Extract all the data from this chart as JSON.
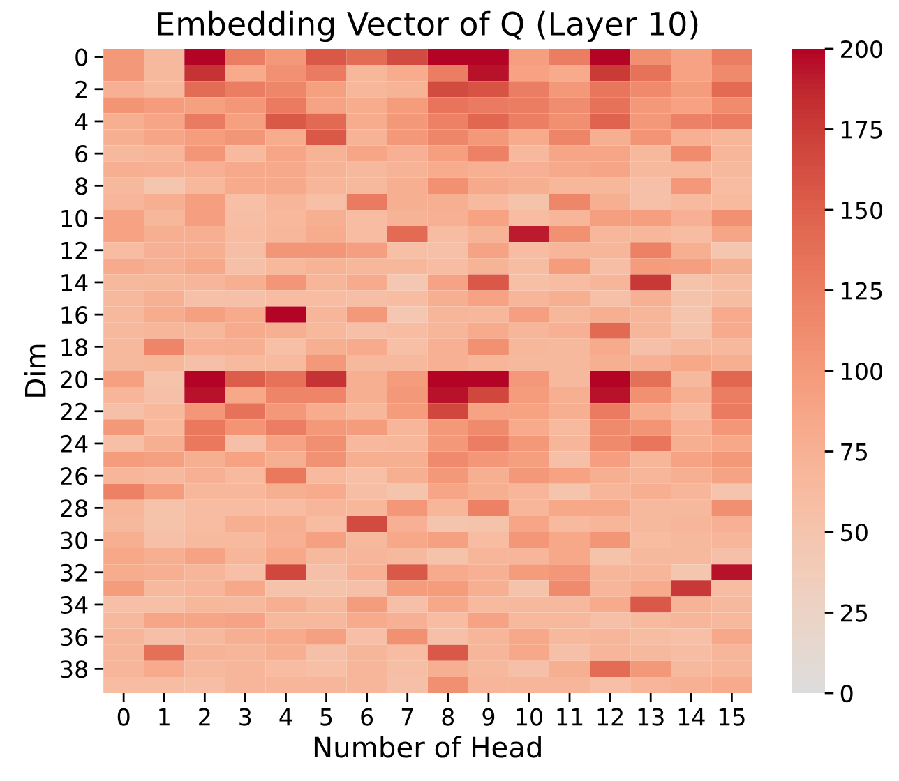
{
  "chart_data": {
    "type": "heatmap",
    "title": "Embedding Vector of Q (Layer 10)",
    "xlabel": "Number of Head",
    "ylabel": "Dim",
    "categories": [
      "0",
      "1",
      "2",
      "3",
      "4",
      "5",
      "6",
      "7",
      "8",
      "9",
      "10",
      "11",
      "12",
      "13",
      "14",
      "15"
    ],
    "y_categories": [
      "0",
      null,
      "2",
      null,
      "4",
      null,
      "6",
      null,
      "8",
      null,
      "10",
      null,
      "12",
      null,
      "14",
      null,
      "16",
      null,
      "18",
      null,
      "20",
      null,
      "22",
      null,
      "24",
      null,
      "26",
      null,
      "28",
      null,
      "30",
      null,
      "32",
      null,
      "34",
      null,
      "36",
      null,
      "38",
      null
    ],
    "cells": [
      [
        100,
        65,
        200,
        125,
        100,
        155,
        140,
        165,
        200,
        200,
        95,
        125,
        200,
        110,
        90,
        125
      ],
      [
        100,
        65,
        180,
        82,
        108,
        128,
        68,
        80,
        125,
        195,
        92,
        82,
        175,
        135,
        92,
        115
      ],
      [
        75,
        65,
        140,
        125,
        118,
        93,
        68,
        72,
        165,
        158,
        125,
        100,
        132,
        115,
        97,
        142
      ],
      [
        105,
        97,
        93,
        102,
        128,
        90,
        80,
        97,
        133,
        128,
        125,
        112,
        135,
        100,
        92,
        113
      ],
      [
        78,
        88,
        128,
        93,
        155,
        143,
        80,
        100,
        122,
        145,
        124,
        110,
        148,
        100,
        122,
        128
      ],
      [
        77,
        88,
        96,
        104,
        80,
        155,
        72,
        100,
        118,
        100,
        82,
        120,
        78,
        105,
        75,
        70
      ],
      [
        65,
        70,
        104,
        64,
        88,
        72,
        88,
        75,
        95,
        122,
        65,
        88,
        88,
        65,
        113,
        70
      ],
      [
        78,
        76,
        76,
        84,
        84,
        72,
        65,
        72,
        80,
        76,
        75,
        84,
        88,
        65,
        65,
        65
      ],
      [
        65,
        47,
        67,
        82,
        84,
        70,
        65,
        78,
        108,
        84,
        78,
        68,
        68,
        55,
        100,
        62
      ],
      [
        70,
        77,
        95,
        57,
        70,
        57,
        128,
        77,
        78,
        64,
        52,
        118,
        77,
        55,
        64,
        64
      ],
      [
        90,
        68,
        95,
        58,
        66,
        78,
        62,
        72,
        75,
        92,
        62,
        70,
        95,
        95,
        75,
        108
      ],
      [
        92,
        77,
        78,
        62,
        68,
        80,
        62,
        142,
        62,
        72,
        192,
        108,
        68,
        68,
        62,
        88
      ],
      [
        62,
        75,
        78,
        58,
        104,
        104,
        95,
        57,
        55,
        90,
        62,
        70,
        70,
        122,
        77,
        48
      ],
      [
        82,
        75,
        85,
        55,
        66,
        72,
        68,
        68,
        62,
        72,
        60,
        97,
        58,
        97,
        95,
        77
      ],
      [
        65,
        68,
        70,
        78,
        104,
        70,
        82,
        46,
        90,
        155,
        57,
        62,
        70,
        177,
        53,
        60
      ],
      [
        65,
        75,
        56,
        56,
        62,
        62,
        58,
        62,
        77,
        92,
        70,
        78,
        55,
        75,
        53,
        60
      ],
      [
        65,
        80,
        93,
        82,
        200,
        70,
        100,
        46,
        70,
        68,
        95,
        68,
        77,
        70,
        50,
        82
      ],
      [
        65,
        70,
        68,
        82,
        78,
        66,
        55,
        62,
        70,
        82,
        70,
        75,
        143,
        70,
        53,
        82
      ],
      [
        65,
        120,
        75,
        78,
        57,
        78,
        82,
        57,
        75,
        108,
        68,
        65,
        82,
        55,
        65,
        65
      ],
      [
        65,
        68,
        55,
        64,
        64,
        100,
        65,
        65,
        75,
        70,
        65,
        65,
        78,
        75,
        85,
        77
      ],
      [
        93,
        52,
        200,
        152,
        135,
        180,
        77,
        97,
        200,
        200,
        100,
        65,
        200,
        137,
        65,
        145
      ],
      [
        70,
        56,
        195,
        85,
        120,
        120,
        77,
        100,
        195,
        168,
        97,
        77,
        195,
        108,
        77,
        125
      ],
      [
        56,
        66,
        103,
        135,
        100,
        80,
        68,
        97,
        168,
        92,
        92,
        78,
        127,
        80,
        64,
        127
      ],
      [
        100,
        66,
        130,
        105,
        125,
        100,
        97,
        70,
        100,
        115,
        82,
        64,
        115,
        105,
        75,
        103
      ],
      [
        57,
        78,
        130,
        56,
        90,
        110,
        65,
        68,
        100,
        125,
        100,
        70,
        115,
        132,
        78,
        85
      ],
      [
        97,
        93,
        78,
        92,
        78,
        107,
        78,
        77,
        115,
        103,
        95,
        56,
        95,
        70,
        90,
        100
      ],
      [
        70,
        65,
        75,
        64,
        130,
        64,
        57,
        77,
        100,
        77,
        100,
        92,
        78,
        70,
        78,
        90
      ],
      [
        122,
        97,
        68,
        68,
        78,
        82,
        58,
        50,
        88,
        77,
        70,
        50,
        70,
        78,
        70,
        50
      ],
      [
        70,
        52,
        62,
        62,
        62,
        70,
        68,
        103,
        70,
        122,
        70,
        85,
        85,
        65,
        65,
        110
      ],
      [
        65,
        53,
        62,
        78,
        78,
        62,
        165,
        75,
        50,
        53,
        88,
        64,
        70,
        65,
        70,
        75
      ],
      [
        77,
        55,
        64,
        64,
        75,
        93,
        65,
        85,
        93,
        62,
        103,
        85,
        104,
        62,
        65,
        70
      ],
      [
        85,
        77,
        90,
        70,
        85,
        65,
        70,
        65,
        53,
        70,
        70,
        85,
        52,
        65,
        65,
        55
      ],
      [
        80,
        78,
        70,
        57,
        168,
        56,
        75,
        155,
        82,
        75,
        97,
        103,
        70,
        70,
        47,
        195
      ],
      [
        97,
        65,
        70,
        85,
        52,
        53,
        55,
        97,
        97,
        78,
        53,
        115,
        70,
        82,
        177,
        62
      ],
      [
        57,
        57,
        68,
        65,
        78,
        65,
        97,
        55,
        85,
        64,
        65,
        65,
        82,
        155,
        72,
        65
      ],
      [
        65,
        88,
        88,
        90,
        65,
        65,
        82,
        75,
        62,
        90,
        65,
        65,
        55,
        64,
        70,
        65
      ],
      [
        70,
        55,
        65,
        78,
        82,
        93,
        57,
        108,
        55,
        70,
        85,
        65,
        70,
        60,
        57,
        85
      ],
      [
        70,
        137,
        72,
        70,
        78,
        55,
        70,
        62,
        155,
        70,
        85,
        55,
        70,
        65,
        62,
        70
      ],
      [
        70,
        82,
        65,
        70,
        62,
        57,
        70,
        58,
        78,
        65,
        55,
        78,
        140,
        100,
        65,
        70
      ],
      [
        62,
        62,
        58,
        70,
        70,
        70,
        70,
        55,
        110,
        70,
        70,
        70,
        57,
        70,
        75,
        82
      ]
    ],
    "clim": [
      0,
      200
    ],
    "cticks": [
      0,
      25,
      50,
      75,
      100,
      125,
      150,
      175,
      200
    ]
  }
}
